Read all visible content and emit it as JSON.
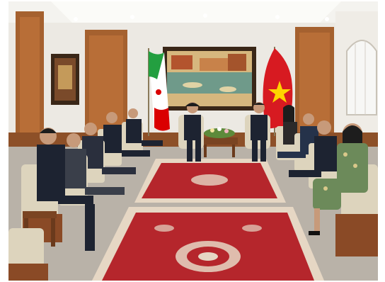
{
  "image": {},
  "palette": {
    "ceiling": "#f4f3ef",
    "wall": "#ece9e3",
    "wood_panel": "#a5612f",
    "wood_dark": "#7a4422",
    "carpet_red": "#b5262c",
    "carpet_border": "#e6d7c4",
    "floor_stone": "#b9b2a8",
    "vn_flag": "#d71a21",
    "vn_star": "#ffd400",
    "ir_green": "#239f40",
    "ir_red": "#da0000",
    "suit_dark": "#1d2331",
    "chair_cushion": "#ddd4bd",
    "chair_wood": "#8a4a26"
  }
}
